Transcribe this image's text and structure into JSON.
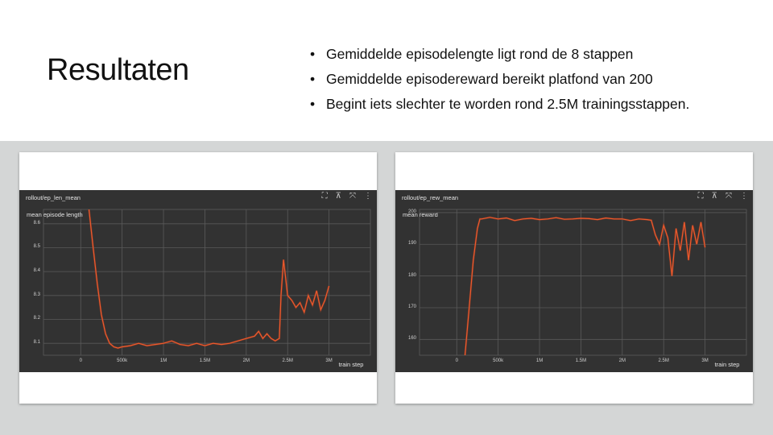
{
  "slide": {
    "title": "Resultaten",
    "bullets": [
      "Gemiddelde episodelengte ligt rond de 8 stappen",
      "Gemiddelde episodereward bereikt platfond van 200",
      "Begint iets slechter te worden rond 2.5M trainingsstappen."
    ]
  },
  "colors": {
    "line": "#ee5a2c",
    "raw": "#8a3b27",
    "panel": "#323232",
    "grid": "#5a5a5a"
  },
  "icons": [
    "fit-domain-icon",
    "pin-icon",
    "fullscreen-icon",
    "more-vert-icon"
  ],
  "chart_data": [
    {
      "type": "line",
      "title": "rollout/ep_len_mean",
      "ylabel": "mean episode length",
      "xlabel": "train step",
      "x_ticks": [
        "0",
        "500k",
        "1M",
        "1.5M",
        "2M",
        "2.5M",
        "3M"
      ],
      "y_ticks": [
        "8.1",
        "8.2",
        "8.3",
        "8.4",
        "8.5",
        "8.6"
      ],
      "xlim": [
        -450000,
        3500000
      ],
      "ylim": [
        8.05,
        8.66
      ],
      "grid": true,
      "series": [
        {
          "x": [
            100000,
            150000,
            200000,
            250000,
            300000,
            350000,
            400000,
            450000,
            500000,
            600000,
            700000,
            800000,
            900000,
            1000000,
            1100000,
            1200000,
            1300000,
            1400000,
            1500000,
            1600000,
            1700000,
            1800000,
            1900000,
            2000000,
            2100000,
            2150000,
            2200000,
            2250000,
            2300000,
            2350000,
            2400000,
            2420000,
            2450000,
            2480000,
            2500000,
            2550000,
            2600000,
            2650000,
            2700000,
            2750000,
            2800000,
            2850000,
            2900000,
            2950000,
            3000000
          ],
          "y": [
            8.66,
            8.5,
            8.35,
            8.22,
            8.14,
            8.1,
            8.085,
            8.08,
            8.085,
            8.09,
            8.1,
            8.09,
            8.095,
            8.1,
            8.11,
            8.095,
            8.09,
            8.1,
            8.09,
            8.1,
            8.095,
            8.1,
            8.11,
            8.12,
            8.13,
            8.15,
            8.12,
            8.14,
            8.12,
            8.11,
            8.12,
            8.3,
            8.45,
            8.36,
            8.3,
            8.28,
            8.25,
            8.27,
            8.23,
            8.3,
            8.26,
            8.32,
            8.24,
            8.28,
            8.34
          ]
        }
      ]
    },
    {
      "type": "line",
      "title": "rollout/ep_rew_mean",
      "ylabel": "mean reward",
      "xlabel": "train step",
      "x_ticks": [
        "0",
        "500k",
        "1M",
        "1.5M",
        "2M",
        "2.5M",
        "3M"
      ],
      "y_ticks": [
        "160",
        "170",
        "180",
        "190",
        "200"
      ],
      "xlim": [
        -450000,
        3500000
      ],
      "ylim": [
        155,
        201
      ],
      "grid": true,
      "series": [
        {
          "x": [
            100000,
            150000,
            200000,
            250000,
            280000,
            300000,
            400000,
            500000,
            600000,
            700000,
            800000,
            900000,
            1000000,
            1100000,
            1200000,
            1300000,
            1400000,
            1500000,
            1600000,
            1700000,
            1800000,
            1900000,
            2000000,
            2100000,
            2200000,
            2300000,
            2350000,
            2400000,
            2450000,
            2500000,
            2550000,
            2600000,
            2650000,
            2700000,
            2750000,
            2800000,
            2850000,
            2900000,
            2950000,
            3000000
          ],
          "y": [
            155,
            170,
            185,
            195,
            198,
            198,
            198.5,
            198,
            198.3,
            197.5,
            198,
            198.2,
            197.8,
            198,
            198.4,
            197.9,
            198,
            198.2,
            198.1,
            197.8,
            198.3,
            198,
            198,
            197.5,
            198,
            197.8,
            197.6,
            193,
            190,
            196,
            192,
            180,
            195,
            188,
            197,
            185,
            196,
            190,
            197,
            189
          ]
        }
      ]
    }
  ]
}
